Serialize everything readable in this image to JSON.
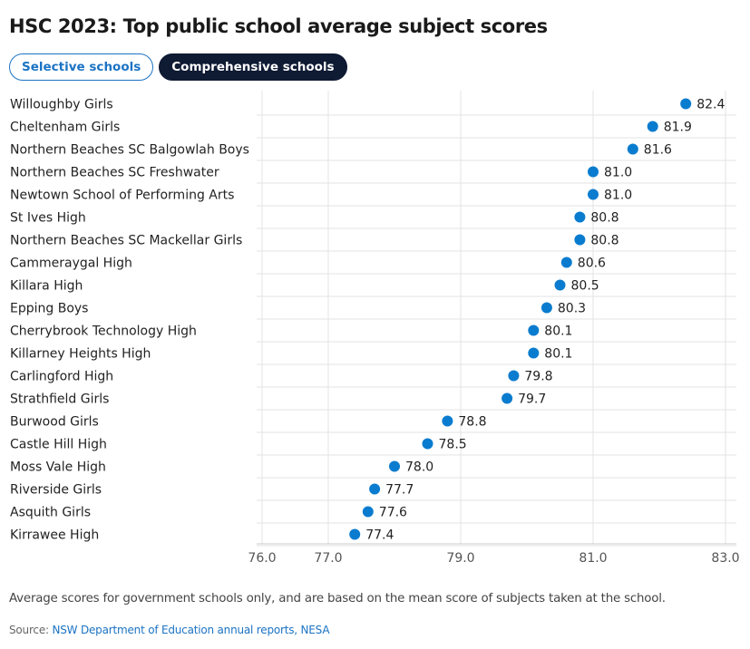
{
  "title": "HSC 2023: Top public school average subject scores",
  "tabs": [
    {
      "label": "Selective schools",
      "active": false
    },
    {
      "label": "Comprehensive schools",
      "active": true
    }
  ],
  "colors": {
    "dot": "#0a7ccf",
    "grid": "#e3e3e3",
    "axis": "#c8c8c8",
    "tab_active_bg": "#0f1a33",
    "link": "#1b73c4"
  },
  "chart_data": {
    "type": "scatter",
    "orientation": "horizontal-dot",
    "categories": [
      "Willoughby Girls",
      "Cheltenham Girls",
      "Northern Beaches SC Balgowlah Boys",
      "Northern Beaches SC Freshwater",
      "Newtown School of Performing Arts",
      "St Ives High",
      "Northern Beaches SC Mackellar Girls",
      "Cammeraygal High",
      "Killara High",
      "Epping Boys",
      "Cherrybrook Technology High",
      "Killarney Heights High",
      "Carlingford High",
      "Strathfield Girls",
      "Burwood Girls",
      "Castle Hill High",
      "Moss Vale High",
      "Riverside Girls",
      "Asquith Girls",
      "Kirrawee High"
    ],
    "values": [
      82.4,
      81.9,
      81.6,
      81.0,
      81.0,
      80.8,
      80.8,
      80.6,
      80.5,
      80.3,
      80.1,
      80.1,
      79.8,
      79.7,
      78.8,
      78.5,
      78.0,
      77.7,
      77.6,
      77.4
    ],
    "value_labels": [
      "82.4",
      "81.9",
      "81.6",
      "81.0",
      "81.0",
      "80.8",
      "80.8",
      "80.6",
      "80.5",
      "80.3",
      "80.1",
      "80.1",
      "79.8",
      "79.7",
      "78.8",
      "78.5",
      "78.0",
      "77.7",
      "77.6",
      "77.4"
    ],
    "xticks": [
      76,
      77,
      79,
      81,
      83
    ],
    "xtick_labels": [
      "76.0",
      "77.0",
      "79.0",
      "81.0",
      "83.0"
    ],
    "xlim": [
      76,
      83
    ],
    "grid": true
  },
  "note": "Average scores for government schools only, and are based on the mean score of subjects taken at the school.",
  "source": {
    "prefix": "Source: ",
    "link_text": "NSW Department of Education annual reports, NESA"
  }
}
